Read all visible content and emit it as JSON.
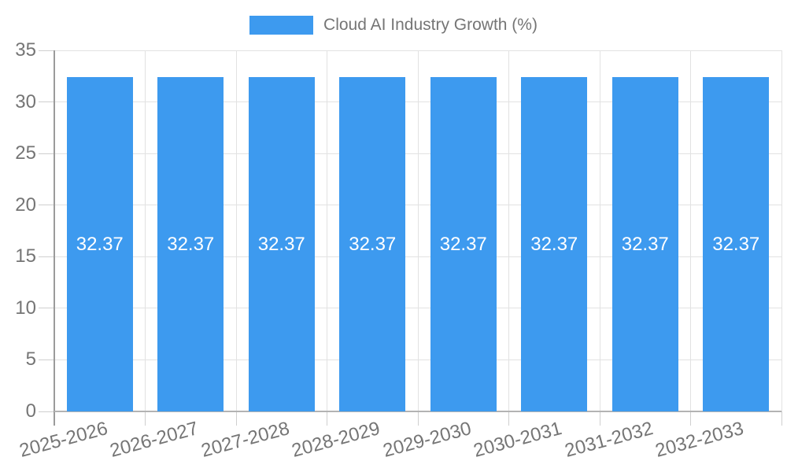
{
  "chart_data": {
    "type": "bar",
    "title": "Cloud AI Industry Growth (%)",
    "categories": [
      "2025-2026",
      "2026-2027",
      "2027-2028",
      "2028-2029",
      "2029-2030",
      "2030-2031",
      "2031-2032",
      "2032-2033"
    ],
    "values": [
      32.37,
      32.37,
      32.37,
      32.37,
      32.37,
      32.37,
      32.37,
      32.37
    ],
    "value_labels": [
      "32.37",
      "32.37",
      "32.37",
      "32.37",
      "32.37",
      "32.37",
      "32.37",
      "32.37"
    ],
    "xlabel": "",
    "ylabel": "",
    "ylim": [
      0,
      35
    ],
    "yticks": [
      0,
      5,
      10,
      15,
      20,
      25,
      30,
      35
    ],
    "grid": true,
    "legend_position": "top",
    "colors": {
      "bar_fill": "#3d9aef",
      "value_label": "#ffffff",
      "tick_text": "#757575",
      "legend_text": "#757575",
      "gridline": "#e2e2e2",
      "axis_line": "#9b9b9b",
      "background": "#ffffff"
    }
  },
  "legend": {
    "label": "Cloud AI Industry Growth (%)"
  }
}
